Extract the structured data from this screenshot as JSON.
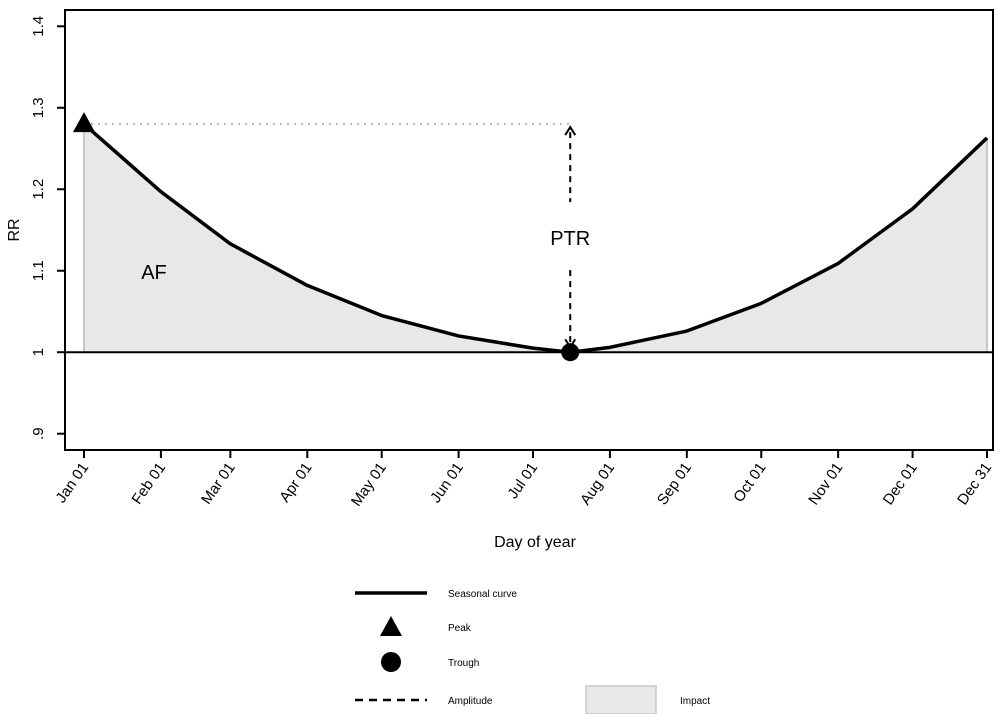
{
  "chart_data": {
    "type": "line",
    "xlabel": "Day of year",
    "ylabel": "RR",
    "ylim": [
      0.88,
      1.42
    ],
    "x_ticks": [
      {
        "day": 1,
        "label": "Jan 01"
      },
      {
        "day": 32,
        "label": "Feb 01"
      },
      {
        "day": 60,
        "label": "Mar 01"
      },
      {
        "day": 91,
        "label": "Apr 01"
      },
      {
        "day": 121,
        "label": "May 01"
      },
      {
        "day": 152,
        "label": "Jun 01"
      },
      {
        "day": 182,
        "label": "Jul 01"
      },
      {
        "day": 213,
        "label": "Aug 01"
      },
      {
        "day": 244,
        "label": "Sep 01"
      },
      {
        "day": 274,
        "label": "Oct 01"
      },
      {
        "day": 305,
        "label": "Nov 01"
      },
      {
        "day": 335,
        "label": "Dec 01"
      },
      {
        "day": 365,
        "label": "Dec 31"
      }
    ],
    "y_ticks": [
      {
        "value": 0.9,
        "label": ".9"
      },
      {
        "value": 1.0,
        "label": "1"
      },
      {
        "value": 1.1,
        "label": "1.1"
      },
      {
        "value": 1.2,
        "label": "1.2"
      },
      {
        "value": 1.3,
        "label": "1.3"
      },
      {
        "value": 1.4,
        "label": "1.4"
      }
    ],
    "series": [
      {
        "name": "Seasonal curve",
        "color": "#000000",
        "x": [
          1,
          32,
          60,
          91,
          121,
          152,
          182,
          197,
          213,
          244,
          274,
          305,
          335,
          365
        ],
        "y": [
          1.28,
          1.197,
          1.133,
          1.082,
          1.045,
          1.02,
          1.005,
          1.0,
          1.006,
          1.026,
          1.06,
          1.109,
          1.176,
          1.263
        ]
      }
    ],
    "peak": {
      "x": 1,
      "y": 1.28
    },
    "trough": {
      "x": 197,
      "y": 1.0
    },
    "reference_y": 1.0,
    "annotations": {
      "ptr_label": "PTR",
      "af_label": "AF"
    },
    "colors": {
      "impact_fill": "#e8e8e8",
      "impact_edge": "#c8c8c8",
      "dotted_line": "#888888"
    },
    "legend": {
      "items": [
        {
          "symbol": "line",
          "label": "Seasonal curve"
        },
        {
          "symbol": "triangle",
          "label": "Peak"
        },
        {
          "symbol": "circle",
          "label": "Trough"
        },
        {
          "symbol": "dashed",
          "label": "Amplitude"
        },
        {
          "symbol": "box",
          "label": "Impact"
        }
      ]
    }
  }
}
